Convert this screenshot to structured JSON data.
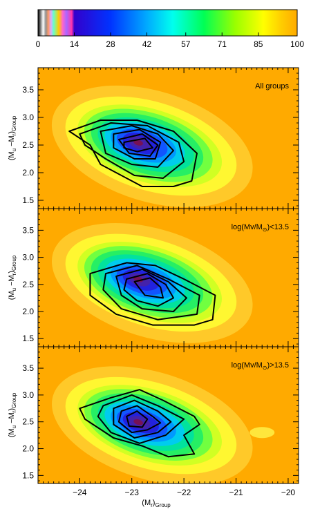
{
  "colorbar": {
    "ticks": [
      "0",
      "14",
      "28",
      "42",
      "57",
      "71",
      "85",
      "100"
    ],
    "min": 0,
    "max": 100
  },
  "colors": {
    "background": "#ffffff",
    "panel_base": "#ffaa00",
    "contour": "#000000"
  },
  "chart_data": {
    "type": "heatmap",
    "xlabel": {
      "main": "(M",
      "sub1": "r",
      "mid": ")",
      "sub2": "Group"
    },
    "ylabel": {
      "main": "(M",
      "sub1": "u",
      "mid": " −M",
      "sub3": "r",
      "close": ")",
      "sub2": "Group"
    },
    "xlim": [
      -24.8,
      -19.8
    ],
    "ylim": [
      1.35,
      3.9
    ],
    "xticks": [
      -24,
      -23,
      -22,
      -21,
      -20
    ],
    "xtick_labels": [
      "−24",
      "−23",
      "−22",
      "−21",
      "−20"
    ],
    "yticks": [
      1.5,
      2.0,
      2.5,
      3.0,
      3.5
    ],
    "ytick_labels": [
      "1.5",
      "2.0",
      "2.5",
      "3.0",
      "3.5"
    ],
    "panels": [
      {
        "label": "All groups",
        "label_parts": null,
        "peak": {
          "x": -22.9,
          "y": 2.55
        },
        "contours": [
          [
            [
              -24.2,
              2.75
            ],
            [
              -23.6,
              2.95
            ],
            [
              -22.9,
              2.95
            ],
            [
              -22.2,
              2.75
            ],
            [
              -21.75,
              2.35
            ],
            [
              -21.85,
              1.85
            ],
            [
              -22.2,
              1.75
            ],
            [
              -22.8,
              1.75
            ],
            [
              -23.6,
              2.15
            ],
            [
              -23.8,
              2.5
            ]
          ],
          [
            [
              -24.0,
              2.7
            ],
            [
              -23.4,
              2.9
            ],
            [
              -22.7,
              2.85
            ],
            [
              -22.1,
              2.55
            ],
            [
              -22.0,
              2.2
            ],
            [
              -22.4,
              1.9
            ],
            [
              -22.95,
              1.95
            ],
            [
              -23.5,
              2.25
            ],
            [
              -23.9,
              2.5
            ]
          ],
          [
            [
              -23.6,
              2.75
            ],
            [
              -23.0,
              2.85
            ],
            [
              -22.5,
              2.7
            ],
            [
              -22.2,
              2.4
            ],
            [
              -22.5,
              2.1
            ],
            [
              -23.0,
              2.15
            ],
            [
              -23.5,
              2.35
            ]
          ],
          [
            [
              -23.35,
              2.7
            ],
            [
              -22.85,
              2.78
            ],
            [
              -22.45,
              2.55
            ],
            [
              -22.55,
              2.25
            ],
            [
              -22.95,
              2.25
            ],
            [
              -23.35,
              2.45
            ]
          ],
          [
            [
              -23.25,
              2.6
            ],
            [
              -22.8,
              2.7
            ],
            [
              -22.5,
              2.5
            ],
            [
              -22.65,
              2.3
            ],
            [
              -23.05,
              2.35
            ]
          ],
          [
            [
              -23.15,
              2.55
            ],
            [
              -22.75,
              2.62
            ],
            [
              -22.6,
              2.45
            ],
            [
              -22.9,
              2.38
            ],
            [
              -23.15,
              2.45
            ]
          ]
        ]
      },
      {
        "label": "",
        "label_parts": {
          "pre": "log(Mv/M",
          "sub": "⊙",
          "post": ")<13.5"
        },
        "peak": {
          "x": -22.9,
          "y": 2.6
        },
        "contours": [
          [
            [
              -23.8,
              2.7
            ],
            [
              -23.1,
              2.9
            ],
            [
              -22.55,
              2.85
            ],
            [
              -22.0,
              2.6
            ],
            [
              -21.4,
              2.3
            ],
            [
              -21.45,
              1.85
            ],
            [
              -21.8,
              1.75
            ],
            [
              -22.6,
              1.75
            ],
            [
              -23.3,
              1.95
            ],
            [
              -23.8,
              2.3
            ]
          ],
          [
            [
              -23.5,
              2.7
            ],
            [
              -22.9,
              2.85
            ],
            [
              -22.3,
              2.6
            ],
            [
              -21.7,
              2.3
            ],
            [
              -21.75,
              1.95
            ],
            [
              -22.5,
              1.85
            ],
            [
              -23.2,
              2.05
            ],
            [
              -23.55,
              2.4
            ]
          ],
          [
            [
              -23.3,
              2.65
            ],
            [
              -22.8,
              2.78
            ],
            [
              -22.3,
              2.55
            ],
            [
              -21.95,
              2.25
            ],
            [
              -22.2,
              2.0
            ],
            [
              -22.8,
              2.05
            ],
            [
              -23.2,
              2.3
            ]
          ],
          [
            [
              -23.1,
              2.6
            ],
            [
              -22.7,
              2.7
            ],
            [
              -22.35,
              2.5
            ],
            [
              -22.2,
              2.25
            ],
            [
              -22.5,
              2.1
            ],
            [
              -22.9,
              2.2
            ],
            [
              -23.15,
              2.4
            ]
          ],
          [
            [
              -22.95,
              2.55
            ],
            [
              -22.65,
              2.62
            ],
            [
              -22.45,
              2.45
            ],
            [
              -22.4,
              2.25
            ],
            [
              -22.75,
              2.3
            ]
          ]
        ]
      },
      {
        "label": "",
        "label_parts": {
          "pre": "log(Mv/M",
          "sub": "⊙",
          "post": ")>13.5"
        },
        "peak": {
          "x": -22.9,
          "y": 2.5
        },
        "contours": [
          [
            [
              -24.0,
              2.75
            ],
            [
              -23.4,
              2.95
            ],
            [
              -22.85,
              3.1
            ],
            [
              -22.4,
              2.9
            ],
            [
              -21.8,
              2.6
            ],
            [
              -21.7,
              2.45
            ],
            [
              -22.0,
              2.25
            ],
            [
              -21.8,
              1.9
            ],
            [
              -22.3,
              1.85
            ],
            [
              -22.8,
              2.05
            ],
            [
              -23.35,
              2.2
            ],
            [
              -23.9,
              2.55
            ]
          ],
          [
            [
              -23.55,
              2.8
            ],
            [
              -23.0,
              3.0
            ],
            [
              -22.5,
              2.8
            ],
            [
              -22.0,
              2.55
            ],
            [
              -22.35,
              2.25
            ],
            [
              -22.85,
              2.1
            ],
            [
              -23.4,
              2.3
            ],
            [
              -23.65,
              2.6
            ]
          ],
          [
            [
              -23.35,
              2.75
            ],
            [
              -22.95,
              2.9
            ],
            [
              -22.5,
              2.7
            ],
            [
              -22.25,
              2.5
            ],
            [
              -22.5,
              2.3
            ],
            [
              -22.95,
              2.2
            ],
            [
              -23.35,
              2.45
            ]
          ],
          [
            [
              -23.2,
              2.7
            ],
            [
              -22.9,
              2.8
            ],
            [
              -22.6,
              2.6
            ],
            [
              -22.45,
              2.48
            ],
            [
              -22.7,
              2.35
            ],
            [
              -23.0,
              2.3
            ],
            [
              -23.25,
              2.5
            ]
          ],
          [
            [
              -23.1,
              2.6
            ],
            [
              -22.9,
              2.7
            ],
            [
              -22.7,
              2.55
            ],
            [
              -22.8,
              2.4
            ],
            [
              -23.05,
              2.42
            ]
          ]
        ]
      }
    ]
  }
}
